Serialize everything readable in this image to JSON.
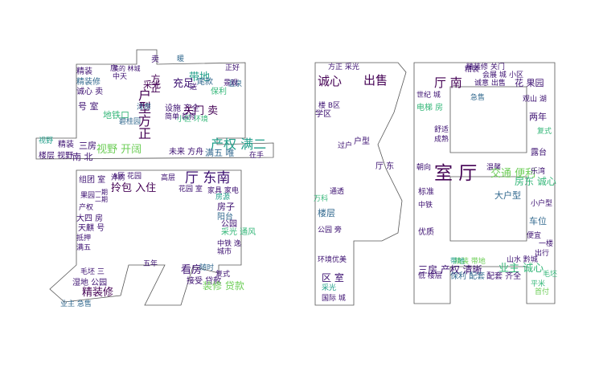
{
  "cloud": {
    "words": [
      {
        "t": "卖",
        "c": "#3b0f70"
      },
      {
        "t": "正好",
        "c": "#3b0f70"
      },
      {
        "t": "带地",
        "c": "#1f9e89"
      },
      {
        "t": "暖",
        "c": "#31688e"
      },
      {
        "t": "采光",
        "c": "#440154"
      },
      {
        "t": "充足",
        "c": "#3b0f70"
      },
      {
        "t": "尾款",
        "c": "#31688e"
      },
      {
        "t": "保利",
        "c": "#35b779"
      },
      {
        "t": "温泉",
        "c": "#31688e"
      },
      {
        "t": "方正",
        "c": "#440154"
      },
      {
        "t": "户型方正",
        "c": "#440154"
      },
      {
        "t": "精装",
        "c": "#3b0f70"
      },
      {
        "t": "房",
        "c": "#3b0f70"
      },
      {
        "t": "精装修",
        "c": "#31688e"
      },
      {
        "t": "诚心 卖",
        "c": "#3b0f70"
      },
      {
        "t": "号 室",
        "c": "#3b0f70"
      },
      {
        "t": "地铁口",
        "c": "#35b779"
      },
      {
        "t": "洋房",
        "c": "#31688e"
      },
      {
        "t": "设施 齐全",
        "c": "#3b0f70"
      },
      {
        "t": "关门 卖",
        "c": "#440154"
      },
      {
        "t": "简单 装修",
        "c": "#3b0f70"
      },
      {
        "t": "碧桂园",
        "c": "#31688e"
      },
      {
        "t": "精装",
        "c": "#3b0f70"
      },
      {
        "t": "三房",
        "c": "#3b0f70"
      },
      {
        "t": "视野 开阔",
        "c": "#6ece58"
      },
      {
        "t": "产权 满二",
        "c": "#1f9e89"
      },
      {
        "t": "楼层 视野",
        "c": "#3b0f70"
      },
      {
        "t": "南 北",
        "c": "#3b0f70"
      },
      {
        "t": "未来 方舟",
        "c": "#3b0f70"
      },
      {
        "t": "满五 唯",
        "c": "#31688e"
      },
      {
        "t": "在手",
        "c": "#3b0f70"
      },
      {
        "t": "组团 室",
        "c": "#3b0f70"
      },
      {
        "t": "拎包 入住",
        "c": "#440154"
      },
      {
        "t": "厅 东南",
        "c": "#3b0f70"
      },
      {
        "t": "花园 室",
        "c": "#3b0f70"
      },
      {
        "t": "家具 家电",
        "c": "#3b0f70"
      },
      {
        "t": "房子",
        "c": "#3b0f70"
      },
      {
        "t": "阳台",
        "c": "#31688e"
      },
      {
        "t": "公园",
        "c": "#3b0f70"
      },
      {
        "t": "采光 通风",
        "c": "#35b779"
      },
      {
        "t": "看房",
        "c": "#3b0f70"
      },
      {
        "t": "随时",
        "c": "#31688e"
      },
      {
        "t": "复式",
        "c": "#3b0f70"
      },
      {
        "t": "接受 贷款",
        "c": "#3b0f70"
      },
      {
        "t": "装修 贷款",
        "c": "#6ece58"
      },
      {
        "t": "湿地 公园",
        "c": "#3b0f70"
      },
      {
        "t": "精装修",
        "c": "#440154"
      },
      {
        "t": "五年",
        "c": "#3b0f70"
      },
      {
        "t": "业主 急售",
        "c": "#31688e"
      },
      {
        "t": "诚心",
        "c": "#440154"
      },
      {
        "t": "出售",
        "c": "#440154"
      },
      {
        "t": "方正 采光",
        "c": "#3b0f70"
      },
      {
        "t": "户型",
        "c": "#3b0f70"
      },
      {
        "t": "厅 东",
        "c": "#3b0f70"
      },
      {
        "t": "楼层",
        "c": "#31688e"
      },
      {
        "t": "公园 旁",
        "c": "#3b0f70"
      },
      {
        "t": "区 室",
        "c": "#3b0f70"
      },
      {
        "t": "采光",
        "c": "#1f9e89"
      },
      {
        "t": "国际 城",
        "c": "#3b0f70"
      },
      {
        "t": "环境优美",
        "c": "#3b0f70"
      },
      {
        "t": "厅 南",
        "c": "#440154"
      },
      {
        "t": "精装修 关门",
        "c": "#3b0f70"
      },
      {
        "t": "诚意 出售",
        "c": "#3b0f70"
      },
      {
        "t": "花 果园",
        "c": "#3b0f70"
      },
      {
        "t": "室 厅",
        "c": "#440154"
      },
      {
        "t": "温馨",
        "c": "#3b0f70"
      },
      {
        "t": "交通 便利",
        "c": "#6ece58"
      },
      {
        "t": "房东 诚心",
        "c": "#35b779"
      },
      {
        "t": "车位",
        "c": "#31688e"
      },
      {
        "t": "两年",
        "c": "#3b0f70"
      },
      {
        "t": "复式",
        "c": "#35b779"
      },
      {
        "t": "业主 诚心",
        "c": "#35b779"
      },
      {
        "t": "三房 产权 清晰",
        "c": "#3b0f70"
      },
      {
        "t": "配套 齐全",
        "c": "#3b0f70"
      },
      {
        "t": "精装 带地",
        "c": "#6ece58"
      },
      {
        "t": "山水 黔城",
        "c": "#3b0f70"
      },
      {
        "t": "出行",
        "c": "#3b0f70"
      },
      {
        "t": "优质",
        "c": "#3b0f70"
      },
      {
        "t": "标准",
        "c": "#3b0f70"
      },
      {
        "t": "中铁",
        "c": "#3b0f70"
      },
      {
        "t": "毛坯",
        "c": "#35b779"
      },
      {
        "t": "精装",
        "c": "#3b0f70"
      },
      {
        "t": "带地",
        "c": "#1f9e89"
      },
      {
        "t": "大户型",
        "c": "#31688e"
      },
      {
        "t": "学区",
        "c": "#3b0f70"
      },
      {
        "t": "小区",
        "c": "#3b0f70"
      },
      {
        "t": "观山 湖",
        "c": "#3b0f70"
      },
      {
        "t": "电梯 房",
        "c": "#35b779"
      },
      {
        "t": "中天",
        "c": "#3b0f70"
      },
      {
        "t": "景观",
        "c": "#3b0f70"
      },
      {
        "t": "高层",
        "c": "#3b0f70"
      },
      {
        "t": "过户",
        "c": "#3b0f70"
      },
      {
        "t": "房源",
        "c": "#1f9e89"
      },
      {
        "t": "小户型",
        "c": "#3b0f70"
      },
      {
        "t": "世纪 城",
        "c": "#3b0f70"
      },
      {
        "t": "美的 林城",
        "c": "#3b0f70"
      },
      {
        "t": "会展 城",
        "c": "#3b0f70"
      },
      {
        "t": "急售",
        "c": "#31688e"
      },
      {
        "t": "露台",
        "c": "#3b0f70"
      },
      {
        "t": "一楼",
        "c": "#3b0f70"
      },
      {
        "t": "楼 B区",
        "c": "#3b0f70"
      },
      {
        "t": "万科",
        "c": "#35b779"
      },
      {
        "t": "一期",
        "c": "#3b0f70"
      },
      {
        "t": "二期",
        "c": "#3b0f70"
      },
      {
        "t": "送",
        "c": "#3b0f70"
      },
      {
        "t": "小区 环境",
        "c": "#35b779"
      },
      {
        "t": "视野",
        "c": "#1f9e89"
      },
      {
        "t": "低 楼层",
        "c": "#3b0f70"
      },
      {
        "t": "保利 配套",
        "c": "#31688e"
      },
      {
        "t": "毛坯 三",
        "c": "#3b0f70"
      },
      {
        "t": "平米",
        "c": "#35b779"
      },
      {
        "t": "首付",
        "c": "#6ece58"
      },
      {
        "t": "大四 房",
        "c": "#3b0f70"
      },
      {
        "t": "天麒 号",
        "c": "#3b0f70"
      },
      {
        "t": "抵押",
        "c": "#3b0f70"
      },
      {
        "t": "满五",
        "c": "#3b0f70"
      },
      {
        "t": "朝向",
        "c": "#3b0f70"
      },
      {
        "t": "乐湾",
        "c": "#3b0f70"
      },
      {
        "t": "中铁 逸",
        "c": "#3b0f70"
      },
      {
        "t": "洋房",
        "c": "#3b0f70"
      },
      {
        "t": "A区 花园",
        "c": "#3b0f70"
      },
      {
        "t": "果园",
        "c": "#3b0f70"
      },
      {
        "t": "产权",
        "c": "#3b0f70"
      },
      {
        "t": "城市",
        "c": "#3b0f70"
      },
      {
        "t": "通透",
        "c": "#3b0f70"
      },
      {
        "t": "舒适",
        "c": "#3b0f70"
      },
      {
        "t": "成熟",
        "c": "#3b0f70"
      },
      {
        "t": "便宜",
        "c": "#3b0f70"
      }
    ]
  }
}
